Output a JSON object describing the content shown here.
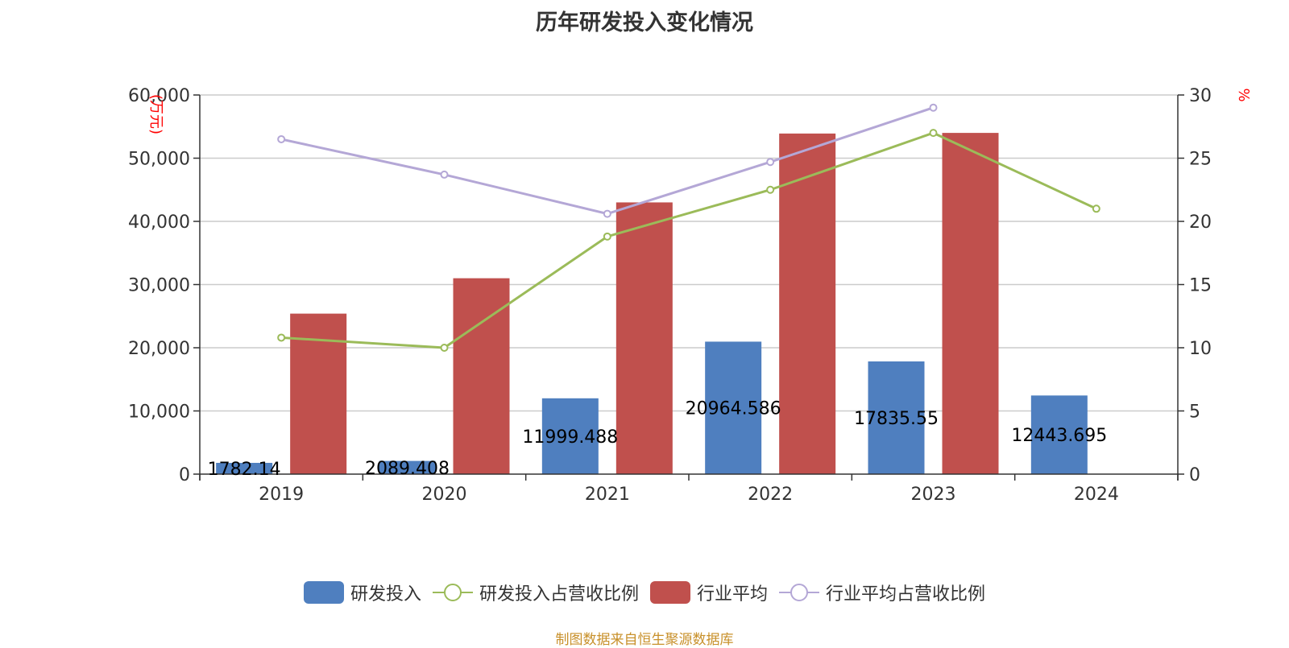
{
  "title": "历年研发投入变化情况",
  "source_note": "制图数据来自恒生聚源数据库",
  "chart_data": {
    "type": "bar",
    "title": "历年研发投入变化情况",
    "categories": [
      "2019",
      "2020",
      "2021",
      "2022",
      "2023",
      "2024"
    ],
    "y_left": {
      "label": "(万元)",
      "ticks": [
        "0",
        "10,000",
        "20,000",
        "30,000",
        "40,000",
        "50,000",
        "60,000"
      ],
      "range": [
        0,
        60000
      ]
    },
    "y_right": {
      "label": "%",
      "ticks": [
        "0",
        "5",
        "10",
        "15",
        "20",
        "25",
        "30"
      ],
      "range": [
        0,
        30
      ]
    },
    "grid": true,
    "legend_position": "bottom",
    "series": [
      {
        "name": "研发投入",
        "type": "bar",
        "axis": "left",
        "color": "#4f7fbf",
        "values": [
          1782.14,
          2089.408,
          11999.488,
          20964.586,
          17835.55,
          12443.695
        ],
        "labels": [
          "1782.14",
          "2089.408",
          "11999.488",
          "20964.586",
          "17835.55",
          "12443.695"
        ]
      },
      {
        "name": "研发投入占营收比例",
        "type": "line",
        "axis": "right",
        "color": "#9bbb59",
        "values": [
          10.8,
          10.0,
          18.8,
          22.5,
          27.0,
          21.0
        ]
      },
      {
        "name": "行业平均",
        "type": "bar",
        "axis": "left",
        "color": "#c0504d",
        "values": [
          25400,
          31000,
          43000,
          53900,
          54000,
          null
        ]
      },
      {
        "name": "行业平均占营收比例",
        "type": "line",
        "axis": "right",
        "color": "#b4a7d6",
        "values": [
          26.5,
          23.7,
          20.6,
          24.7,
          29.0,
          null
        ]
      }
    ]
  }
}
